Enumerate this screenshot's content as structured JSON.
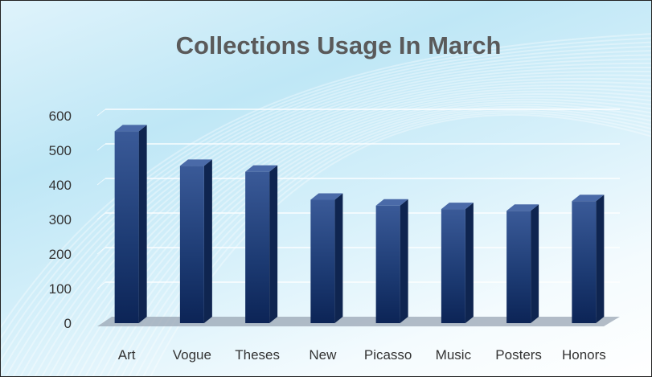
{
  "chart_data": {
    "type": "bar",
    "title": "Collections Usage In March",
    "xlabel": "",
    "ylabel": "",
    "categories": [
      "Art",
      "Vogue",
      "Theses",
      "New",
      "Picasso",
      "Music",
      "Posters",
      "Honors"
    ],
    "values": [
      555,
      455,
      438,
      357,
      340,
      330,
      325,
      353
    ],
    "ylim": [
      0,
      600
    ],
    "yticks": [
      0,
      100,
      200,
      300,
      400,
      500,
      600
    ],
    "grid": true,
    "legend": "none",
    "bar_color": "#1c3a72"
  }
}
